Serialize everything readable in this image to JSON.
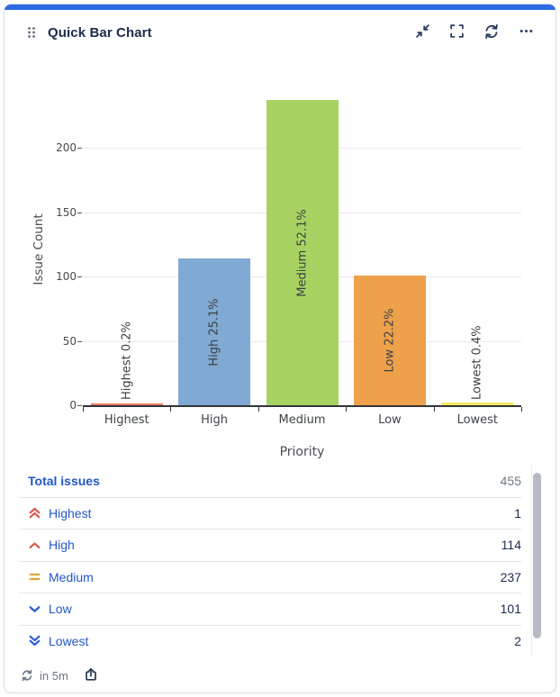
{
  "header": {
    "title": "Quick Bar Chart",
    "action_icons": [
      "minimize",
      "fullscreen",
      "refresh",
      "more-options"
    ]
  },
  "chart_data": {
    "type": "bar",
    "title": "",
    "categories": [
      "Highest",
      "High",
      "Medium",
      "Low",
      "Lowest"
    ],
    "values": [
      1,
      114,
      237,
      101,
      2
    ],
    "percent_labels": [
      "Highest 0.2%",
      "High 25.1%",
      "Medium 52.1%",
      "Low 22.2%",
      "Lowest 0.4%"
    ],
    "bar_colors": [
      "#ed7a63",
      "#80a9d3",
      "#a8d362",
      "#eda14b",
      "#f5e960"
    ],
    "xlabel": "Priority",
    "ylabel": "Issue Count",
    "yticks": [
      0,
      50,
      100,
      150,
      200
    ],
    "ylim": [
      0,
      240
    ],
    "grid": true,
    "legend_position": "none"
  },
  "table": {
    "total_label": "Total issues",
    "total_value": "455",
    "rows": [
      {
        "label": "Highest",
        "value": "1",
        "icon": "priority-highest-icon",
        "icon_color": "#dc5a4b"
      },
      {
        "label": "High",
        "value": "114",
        "icon": "priority-high-icon",
        "icon_color": "#dc5a4b"
      },
      {
        "label": "Medium",
        "value": "237",
        "icon": "priority-medium-icon",
        "icon_color": "#dda43d"
      },
      {
        "label": "Low",
        "value": "101",
        "icon": "priority-low-icon",
        "icon_color": "#2e5ed6"
      },
      {
        "label": "Lowest",
        "value": "2",
        "icon": "priority-lowest-icon",
        "icon_color": "#2e5ed6"
      }
    ]
  },
  "footer": {
    "refresh_text": "in 5m"
  },
  "colors": {
    "accent": "#2e6be2",
    "link": "#2257c9",
    "title_text": "#1c2b4a",
    "muted_text": "#6e7887",
    "axis_line": "#33353a",
    "gridline": "#e9e9ee"
  }
}
